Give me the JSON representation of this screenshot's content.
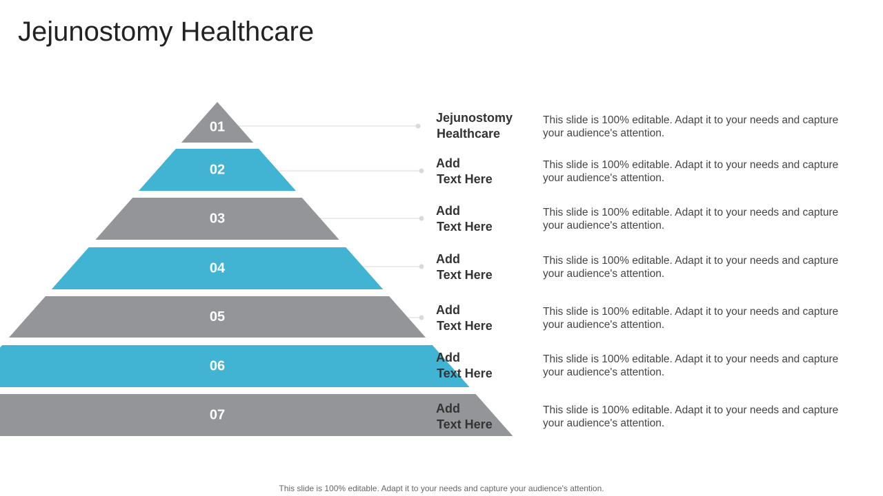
{
  "title": "Jejunostomy Healthcare",
  "colors": {
    "gray": "#939598",
    "blue": "#41B3D3",
    "connector": "#d9d9d9"
  },
  "levels": [
    {
      "number": "01",
      "heading_line1": "Jejunostomy",
      "heading_line2": "Healthcare",
      "description": "This slide is 100% editable. Adapt it to your needs and capture your audience's attention.",
      "color": "gray"
    },
    {
      "number": "02",
      "heading_line1": "Add",
      "heading_line2": "Text Here",
      "description": "This slide is 100% editable. Adapt it to your needs and capture your audience's attention.",
      "color": "blue"
    },
    {
      "number": "03",
      "heading_line1": "Add",
      "heading_line2": "Text Here",
      "description": "This slide is 100% editable. Adapt it to your needs and capture your audience's attention.",
      "color": "gray"
    },
    {
      "number": "04",
      "heading_line1": "Add",
      "heading_line2": "Text Here",
      "description": "This slide is 100% editable. Adapt it to your needs and capture your audience's attention.",
      "color": "blue"
    },
    {
      "number": "05",
      "heading_line1": "Add",
      "heading_line2": "Text Here",
      "description": "This slide is 100% editable. Adapt it to your needs and capture your audience's attention.",
      "color": "gray"
    },
    {
      "number": "06",
      "heading_line1": "Add",
      "heading_line2": "Text Here",
      "description": "This slide is 100% editable. Adapt it to your needs and capture your audience's attention.",
      "color": "blue"
    },
    {
      "number": "07",
      "heading_line1": "Add",
      "heading_line2": "Text Here",
      "description": "This slide is 100% editable. Adapt it to your needs and capture your audience's attention.",
      "color": "gray"
    }
  ],
  "footer": "This slide is 100% editable. Adapt it to your needs and capture your audience's attention."
}
